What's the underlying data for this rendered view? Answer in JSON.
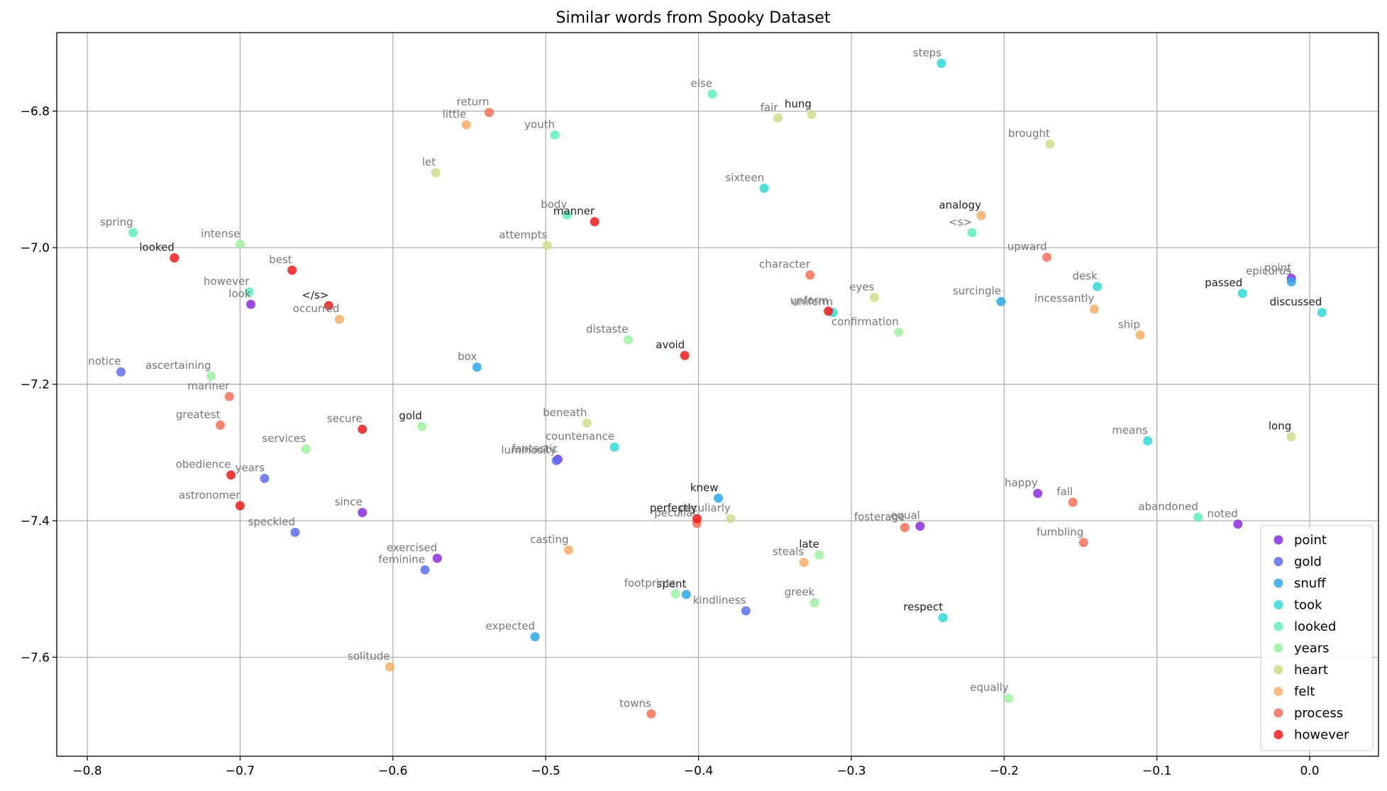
{
  "chart_data": {
    "type": "scatter",
    "title": "Similar words from Spooky Dataset",
    "xlabel": "",
    "ylabel": "",
    "xlim": [
      -0.82,
      0.045
    ],
    "ylim": [
      -7.745,
      -6.685
    ],
    "x_ticks": [
      -0.8,
      -0.7,
      -0.6,
      -0.5,
      -0.4,
      -0.3,
      -0.2,
      -0.1,
      0.0
    ],
    "x_tick_labels": [
      "−0.8",
      "−0.7",
      "−0.6",
      "−0.5",
      "−0.4",
      "−0.3",
      "−0.2",
      "−0.1",
      "0.0"
    ],
    "y_ticks": [
      -6.8,
      -7.0,
      -7.2,
      -7.4,
      -7.6
    ],
    "y_tick_labels": [
      "−6.8",
      "−7.0",
      "−7.2",
      "−7.4",
      "−7.6"
    ],
    "grid": true,
    "legend_position": "bottom-right",
    "series": [
      {
        "name": "point",
        "color": "#8a2be2",
        "points": [
          {
            "word": "point",
            "x": -0.012,
            "y": -7.045,
            "label_color": "#777777"
          },
          {
            "word": "look",
            "x": -0.693,
            "y": -7.083,
            "label_color": "#777777"
          },
          {
            "word": "since",
            "x": -0.62,
            "y": -7.388,
            "label_color": "#777777"
          },
          {
            "word": "exercised",
            "x": -0.571,
            "y": -7.455,
            "label_color": "#777777"
          },
          {
            "word": "happy",
            "x": -0.178,
            "y": -7.36,
            "label_color": "#777777"
          },
          {
            "word": "noted",
            "x": -0.047,
            "y": -7.405,
            "label_color": "#777777"
          },
          {
            "word": "equal",
            "x": -0.255,
            "y": -7.408,
            "label_color": "#777777"
          },
          {
            "word": "fantastic",
            "x": -0.492,
            "y": -7.31,
            "label_color": "#777777"
          }
        ]
      },
      {
        "name": "gold",
        "color": "#5a6ef0",
        "points": [
          {
            "word": "notice",
            "x": -0.778,
            "y": -7.182,
            "label_color": "#777777"
          },
          {
            "word": "years",
            "x": -0.684,
            "y": -7.338,
            "label_color": "#777777"
          },
          {
            "word": "speckled",
            "x": -0.664,
            "y": -7.417,
            "label_color": "#777777"
          },
          {
            "word": "feminine",
            "x": -0.579,
            "y": -7.472,
            "label_color": "#777777"
          },
          {
            "word": "kindliness",
            "x": -0.369,
            "y": -7.532,
            "label_color": "#777777"
          },
          {
            "word": "luminosity",
            "x": -0.493,
            "y": -7.312,
            "label_color": "#777777"
          }
        ]
      },
      {
        "name": "snuff",
        "color": "#2ea6e8",
        "points": [
          {
            "word": "box",
            "x": -0.545,
            "y": -7.175,
            "label_color": "#777777"
          },
          {
            "word": "expected",
            "x": -0.507,
            "y": -7.57,
            "label_color": "#777777"
          },
          {
            "word": "knew",
            "x": -0.387,
            "y": -7.367,
            "label_color": "#222222"
          },
          {
            "word": "surcingle",
            "x": -0.202,
            "y": -7.079,
            "label_color": "#777777"
          },
          {
            "word": "epicurus",
            "x": -0.012,
            "y": -7.05,
            "label_color": "#777777"
          },
          {
            "word": "spent",
            "x": -0.408,
            "y": -7.508,
            "label_color": "#222222"
          }
        ]
      },
      {
        "name": "took",
        "color": "#2fd8d8",
        "points": [
          {
            "word": "steps",
            "x": -0.241,
            "y": -6.73,
            "label_color": "#777777"
          },
          {
            "word": "sixteen",
            "x": -0.357,
            "y": -6.913,
            "label_color": "#777777"
          },
          {
            "word": "desk",
            "x": -0.139,
            "y": -7.057,
            "label_color": "#777777"
          },
          {
            "word": "means",
            "x": -0.106,
            "y": -7.283,
            "label_color": "#777777"
          },
          {
            "word": "countenance",
            "x": -0.455,
            "y": -7.292,
            "label_color": "#777777"
          },
          {
            "word": "respect",
            "x": -0.24,
            "y": -7.542,
            "label_color": "#222222"
          },
          {
            "word": "passed",
            "x": -0.044,
            "y": -7.067,
            "label_color": "#222222"
          },
          {
            "word": "discussed",
            "x": 0.008,
            "y": -7.095,
            "label_color": "#222222"
          },
          {
            "word": "uniform",
            "x": -0.312,
            "y": -7.095,
            "label_color": "#777777"
          }
        ]
      },
      {
        "name": "looked",
        "color": "#5ff0b8",
        "points": [
          {
            "word": "spring",
            "x": -0.77,
            "y": -6.978,
            "label_color": "#777777"
          },
          {
            "word": "however",
            "x": -0.694,
            "y": -7.065,
            "label_color": "#777777"
          },
          {
            "word": "youth",
            "x": -0.494,
            "y": -6.835,
            "label_color": "#777777"
          },
          {
            "word": "else",
            "x": -0.391,
            "y": -6.775,
            "label_color": "#777777"
          },
          {
            "word": "body",
            "x": -0.486,
            "y": -6.952,
            "label_color": "#777777"
          },
          {
            "word": "<s>",
            "x": -0.221,
            "y": -6.978,
            "label_color": "#777777"
          },
          {
            "word": "abandoned",
            "x": -0.073,
            "y": -7.395,
            "label_color": "#777777"
          }
        ]
      },
      {
        "name": "years",
        "color": "#9cf2a0",
        "points": [
          {
            "word": "intense",
            "x": -0.7,
            "y": -6.995,
            "label_color": "#777777"
          },
          {
            "word": "ascertaining",
            "x": -0.719,
            "y": -7.188,
            "label_color": "#777777"
          },
          {
            "word": "services",
            "x": -0.657,
            "y": -7.295,
            "label_color": "#777777"
          },
          {
            "word": "gold",
            "x": -0.581,
            "y": -7.262,
            "label_color": "#222222"
          },
          {
            "word": "distaste",
            "x": -0.446,
            "y": -7.135,
            "label_color": "#777777"
          },
          {
            "word": "confirmation",
            "x": -0.269,
            "y": -7.124,
            "label_color": "#777777"
          },
          {
            "word": "late",
            "x": -0.321,
            "y": -7.45,
            "label_color": "#222222"
          },
          {
            "word": "greek",
            "x": -0.324,
            "y": -7.52,
            "label_color": "#777777"
          },
          {
            "word": "equally",
            "x": -0.197,
            "y": -7.66,
            "label_color": "#777777"
          },
          {
            "word": "footprints",
            "x": -0.415,
            "y": -7.507,
            "label_color": "#777777"
          }
        ]
      },
      {
        "name": "heart",
        "color": "#d4dc8c",
        "points": [
          {
            "word": "let",
            "x": -0.572,
            "y": -6.89,
            "label_color": "#777777"
          },
          {
            "word": "attempts",
            "x": -0.499,
            "y": -6.997,
            "label_color": "#777777"
          },
          {
            "word": "fair",
            "x": -0.348,
            "y": -6.81,
            "label_color": "#777777"
          },
          {
            "word": "hung",
            "x": -0.326,
            "y": -6.805,
            "label_color": "#222222"
          },
          {
            "word": "brought",
            "x": -0.17,
            "y": -6.848,
            "label_color": "#777777"
          },
          {
            "word": "eyes",
            "x": -0.285,
            "y": -7.073,
            "label_color": "#777777"
          },
          {
            "word": "beneath",
            "x": -0.473,
            "y": -7.257,
            "label_color": "#777777"
          },
          {
            "word": "long",
            "x": -0.012,
            "y": -7.277,
            "label_color": "#222222"
          },
          {
            "word": "peculiarly",
            "x": -0.379,
            "y": -7.397,
            "label_color": "#777777"
          }
        ]
      },
      {
        "name": "felt",
        "color": "#f8ae68",
        "points": [
          {
            "word": "little",
            "x": -0.552,
            "y": -6.82,
            "label_color": "#777777"
          },
          {
            "word": "occurred",
            "x": -0.635,
            "y": -7.105,
            "label_color": "#777777"
          },
          {
            "word": "casting",
            "x": -0.485,
            "y": -7.443,
            "label_color": "#777777"
          },
          {
            "word": "solitude",
            "x": -0.602,
            "y": -7.614,
            "label_color": "#777777"
          },
          {
            "word": "steals",
            "x": -0.331,
            "y": -7.461,
            "label_color": "#777777"
          },
          {
            "word": "analogy",
            "x": -0.215,
            "y": -6.953,
            "label_color": "#222222"
          },
          {
            "word": "incessantly",
            "x": -0.141,
            "y": -7.09,
            "label_color": "#777777"
          },
          {
            "word": "ship",
            "x": -0.111,
            "y": -7.128,
            "label_color": "#777777"
          }
        ]
      },
      {
        "name": "process",
        "color": "#f87058",
        "points": [
          {
            "word": "return",
            "x": -0.537,
            "y": -6.802,
            "label_color": "#777777"
          },
          {
            "word": "mariner",
            "x": -0.707,
            "y": -7.218,
            "label_color": "#777777"
          },
          {
            "word": "greatest",
            "x": -0.713,
            "y": -7.26,
            "label_color": "#777777"
          },
          {
            "word": "character",
            "x": -0.327,
            "y": -7.04,
            "label_color": "#777777"
          },
          {
            "word": "upward",
            "x": -0.172,
            "y": -7.014,
            "label_color": "#777777"
          },
          {
            "word": "fall",
            "x": -0.155,
            "y": -7.373,
            "label_color": "#777777"
          },
          {
            "word": "fumbling",
            "x": -0.148,
            "y": -7.432,
            "label_color": "#777777"
          },
          {
            "word": "fosterage",
            "x": -0.265,
            "y": -7.41,
            "label_color": "#777777"
          },
          {
            "word": "towns",
            "x": -0.431,
            "y": -7.683,
            "label_color": "#777777"
          },
          {
            "word": "peculiar",
            "x": -0.401,
            "y": -7.404,
            "label_color": "#777777"
          }
        ]
      },
      {
        "name": "however",
        "color": "#ee1a1a",
        "points": [
          {
            "word": "looked",
            "x": -0.743,
            "y": -7.015,
            "label_color": "#222222"
          },
          {
            "word": "best",
            "x": -0.666,
            "y": -7.033,
            "label_color": "#777777"
          },
          {
            "word": "</s>",
            "x": -0.642,
            "y": -7.085,
            "label_color": "#222222"
          },
          {
            "word": "secure",
            "x": -0.62,
            "y": -7.266,
            "label_color": "#777777"
          },
          {
            "word": "obedience",
            "x": -0.706,
            "y": -7.333,
            "label_color": "#777777"
          },
          {
            "word": "astronomer",
            "x": -0.7,
            "y": -7.378,
            "label_color": "#777777"
          },
          {
            "word": "manner",
            "x": -0.468,
            "y": -6.962,
            "label_color": "#222222"
          },
          {
            "word": "avoid",
            "x": -0.409,
            "y": -7.158,
            "label_color": "#222222"
          },
          {
            "word": "perfectly",
            "x": -0.401,
            "y": -7.397,
            "label_color": "#222222"
          },
          {
            "word": "unform",
            "x": -0.315,
            "y": -7.093,
            "label_color": "#777777"
          }
        ]
      }
    ]
  }
}
